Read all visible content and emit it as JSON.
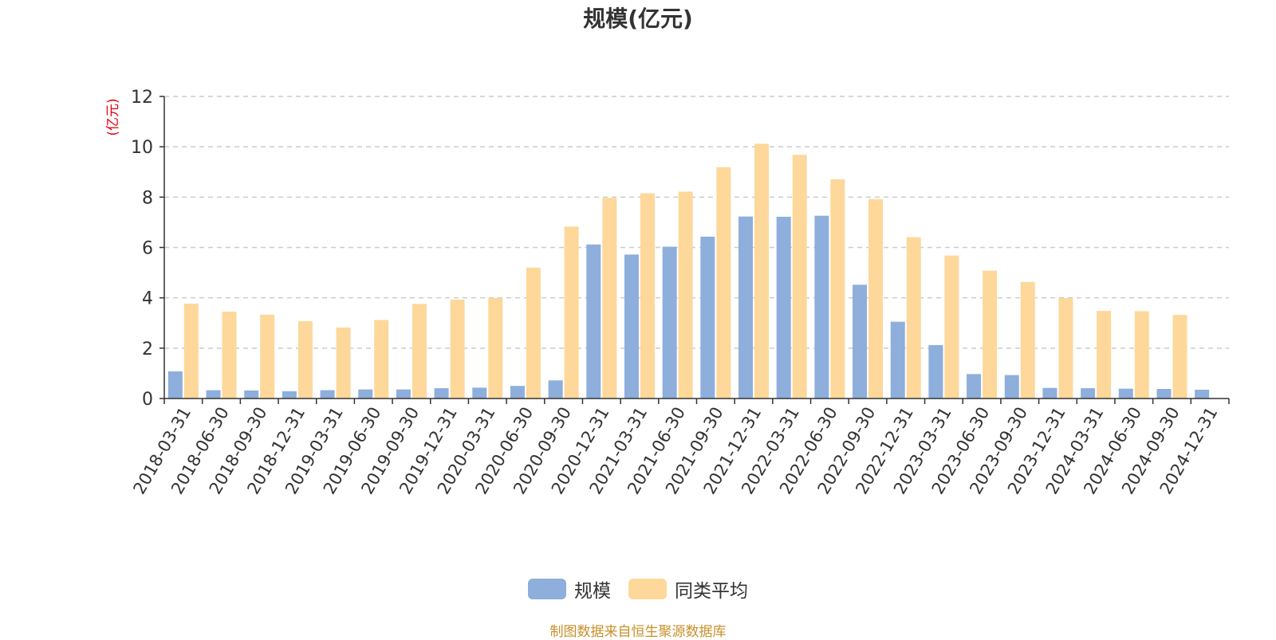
{
  "chart_data": {
    "type": "bar",
    "title": "规模(亿元)",
    "ylabel": "(亿元)",
    "ylim": [
      0,
      12
    ],
    "yticks": [
      0,
      2,
      4,
      6,
      8,
      10,
      12
    ],
    "grid": true,
    "legend_position": "bottom",
    "categories": [
      "2018-03-31",
      "2018-06-30",
      "2018-09-30",
      "2018-12-31",
      "2019-03-31",
      "2019-06-30",
      "2019-09-30",
      "2019-12-31",
      "2020-03-31",
      "2020-06-30",
      "2020-09-30",
      "2020-12-31",
      "2021-03-31",
      "2021-06-30",
      "2021-09-30",
      "2021-12-31",
      "2022-03-31",
      "2022-06-30",
      "2022-09-30",
      "2022-12-31",
      "2023-03-31",
      "2023-06-30",
      "2023-09-30",
      "2023-12-31",
      "2024-03-31",
      "2024-06-30",
      "2024-09-30",
      "2024-12-31"
    ],
    "series": [
      {
        "name": "规模",
        "color": "#8eaedc",
        "values": [
          1.08,
          0.33,
          0.32,
          0.29,
          0.33,
          0.36,
          0.36,
          0.41,
          0.43,
          0.5,
          0.72,
          6.12,
          5.72,
          6.03,
          6.43,
          7.23,
          7.22,
          7.26,
          4.52,
          3.05,
          2.12,
          0.97,
          0.93,
          0.42,
          0.41,
          0.39,
          0.38,
          0.35
        ]
      },
      {
        "name": "同类平均",
        "color": "#fdd89a",
        "values": [
          3.77,
          3.45,
          3.33,
          3.07,
          2.82,
          3.12,
          3.76,
          3.93,
          4.0,
          5.2,
          6.83,
          7.97,
          8.15,
          8.22,
          9.19,
          10.12,
          9.68,
          8.71,
          7.92,
          6.41,
          5.68,
          5.08,
          4.63,
          3.99,
          3.48,
          3.47,
          3.32,
          null
        ]
      }
    ]
  },
  "source_note": "制图数据来自恒生聚源数据库"
}
